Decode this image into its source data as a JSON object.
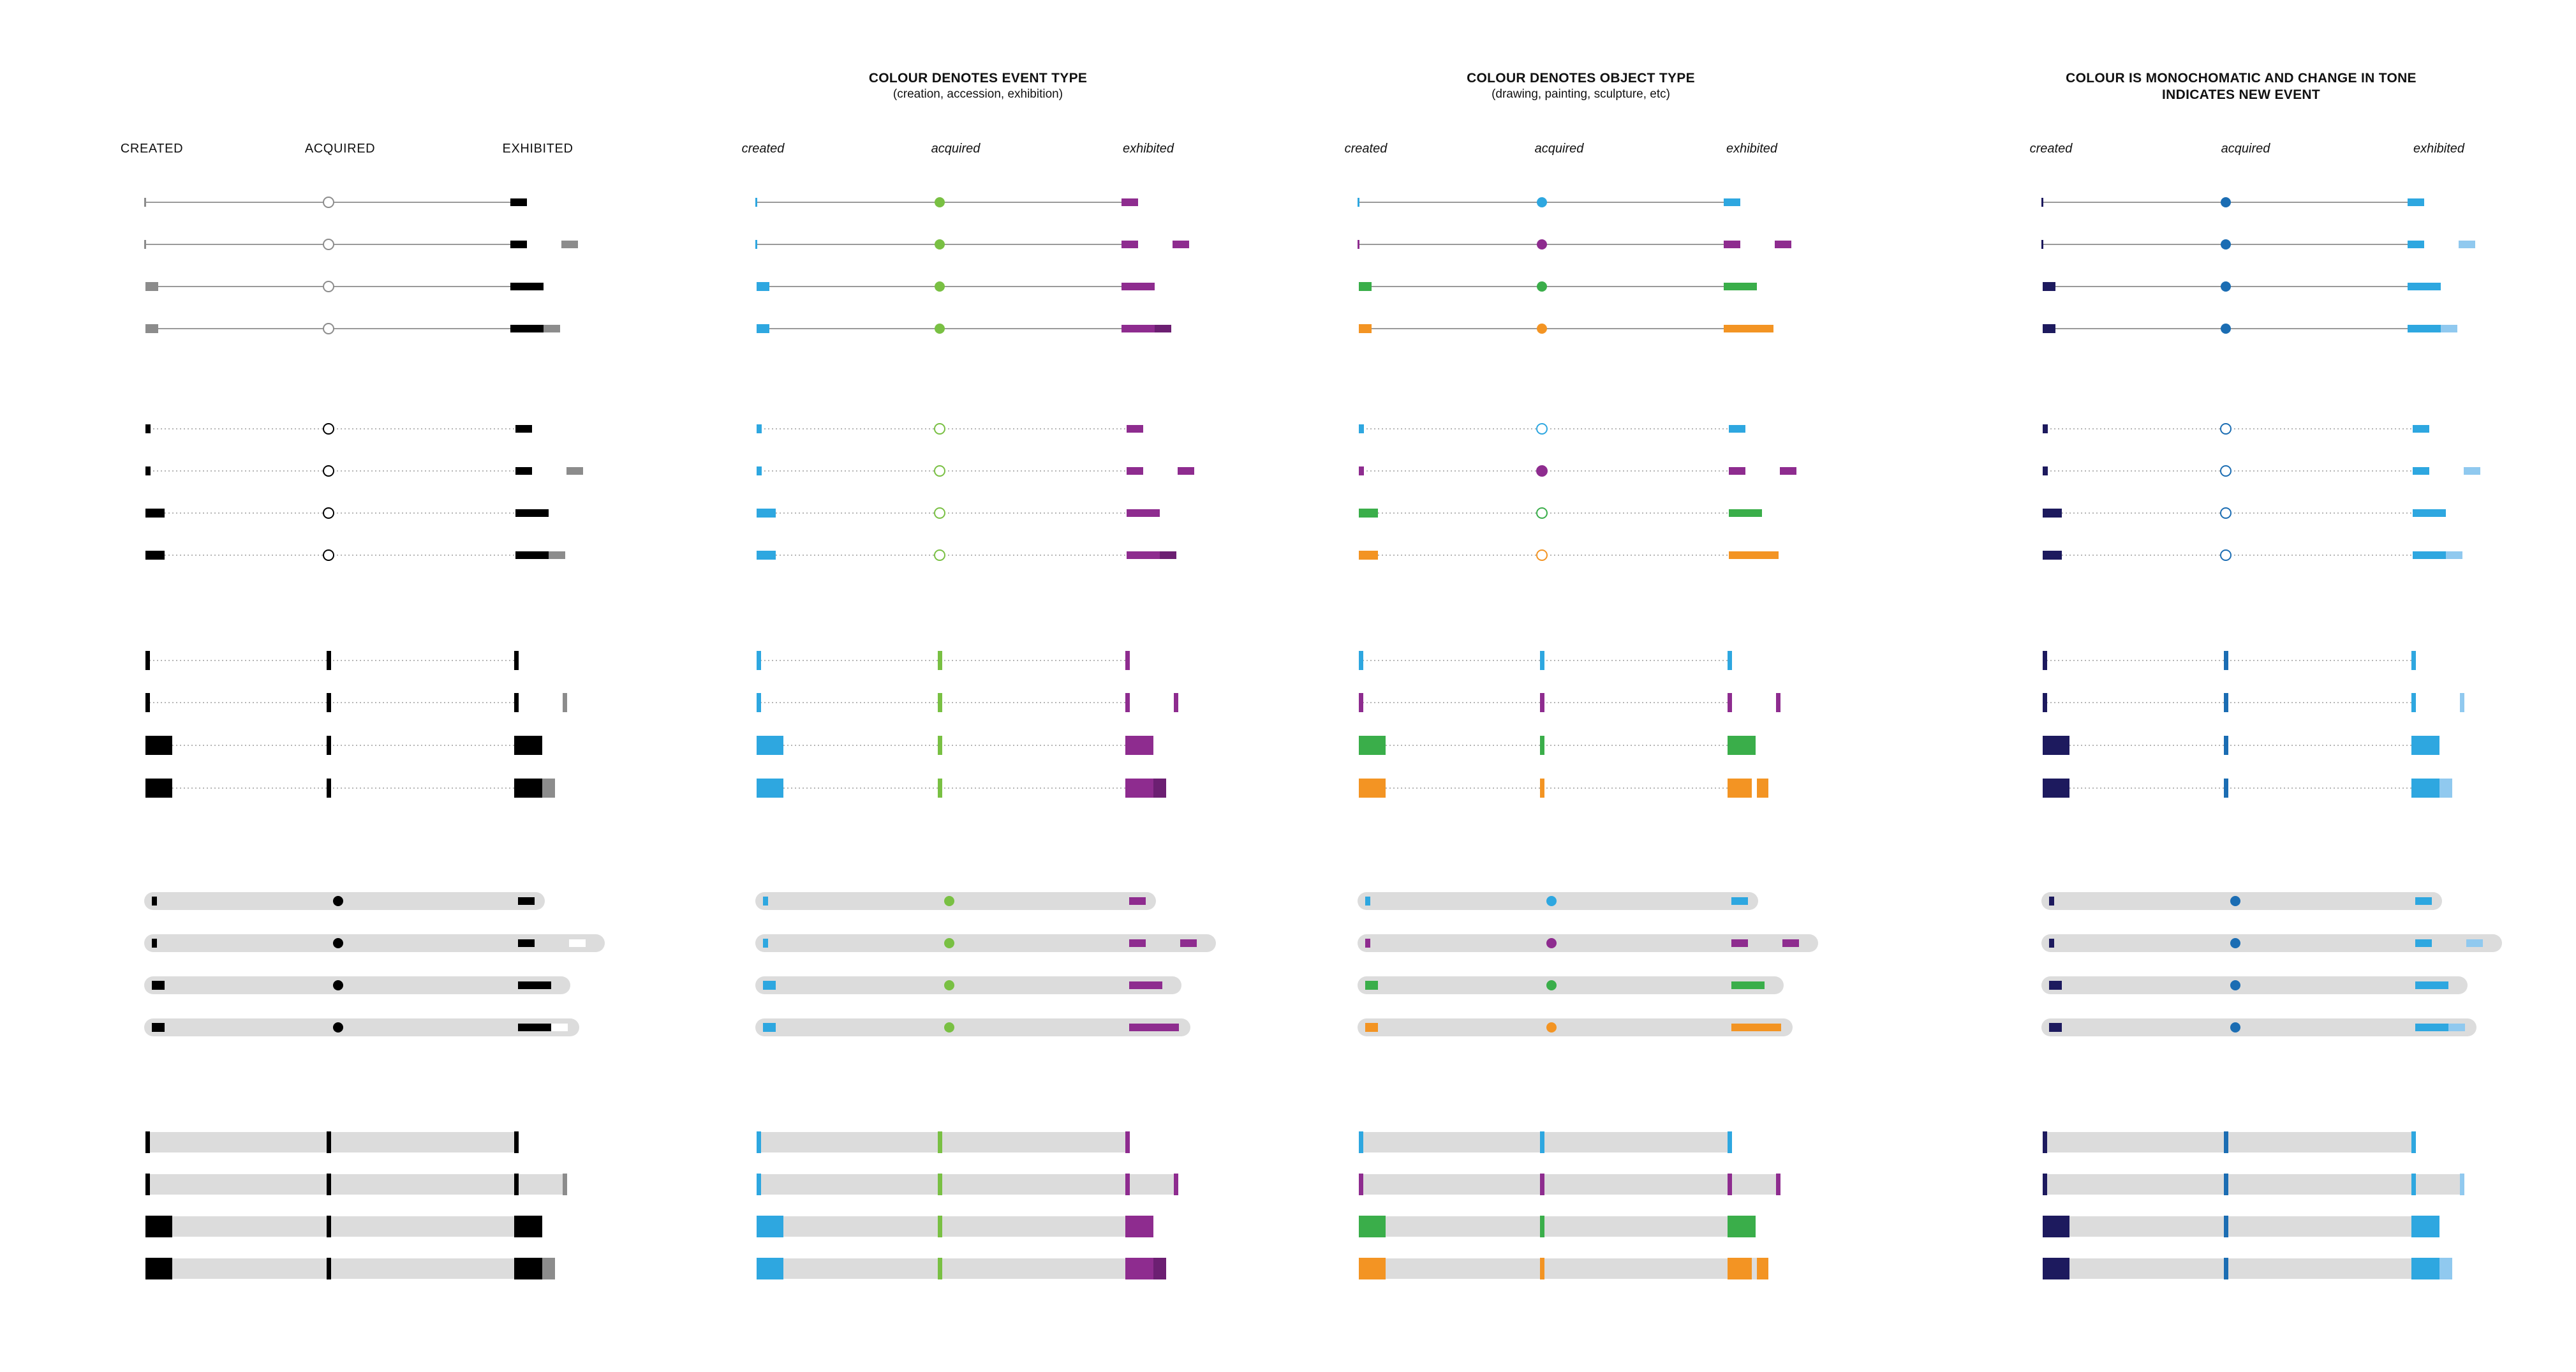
{
  "panels": [
    {
      "title": "",
      "subtitle": "",
      "labels": [
        "CREATED",
        "ACQUIRED",
        "EXHIBITED"
      ]
    },
    {
      "title": "COLOUR DENOTES EVENT TYPE",
      "subtitle": "(creation, accession, exhibition)",
      "labels": [
        "created",
        "acquired",
        "exhibited"
      ]
    },
    {
      "title": "COLOUR DENOTES OBJECT TYPE",
      "subtitle": "(drawing, painting, sculpture, etc)",
      "labels": [
        "created",
        "acquired",
        "exhibited"
      ]
    },
    {
      "title": "COLOUR IS MONOCHOMATIC AND CHANGE IN TONE",
      "subtitle": "INDICATES NEW EVENT",
      "labels": [
        "created",
        "acquired",
        "exhibited"
      ]
    }
  ],
  "colors": {
    "black": "#000000",
    "grey": "#8c8c8c",
    "track": "#dcdcdc",
    "line": "#9a9a9a",
    "blue": "#2ea7e0",
    "green": "#79c043",
    "green_object": "#3aae4a",
    "purple": "#8e2c8f",
    "orange": "#f39423",
    "navy": "#1d1a5e",
    "mid_blue": "#1b6db3",
    "light_blue": "#90c9ef",
    "white": "#ffffff"
  },
  "icons": [
    "hollow-circle-marker",
    "filled-circle-marker",
    "bar-marker",
    "tick-marker"
  ]
}
